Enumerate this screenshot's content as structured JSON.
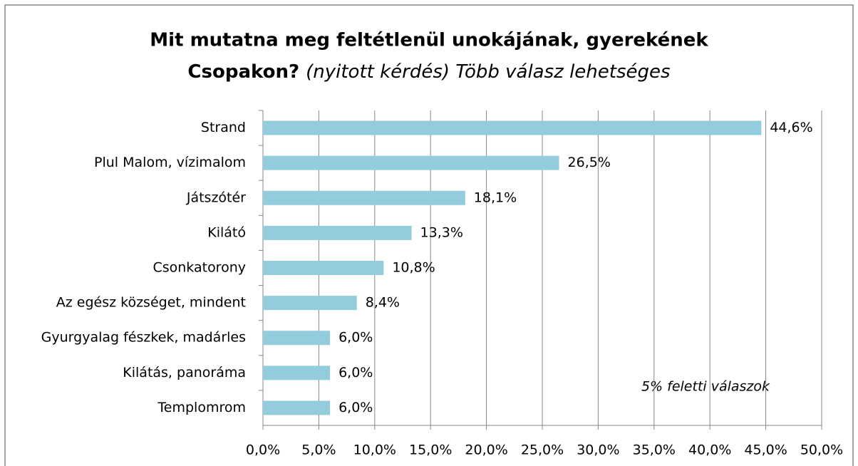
{
  "chart_data": {
    "type": "bar",
    "orientation": "horizontal",
    "title": "Mit mutatna meg feltétlenül unokájának, gyerekének",
    "title_line2": "Csopakon?",
    "subtitle": "(nyitott kérdés) Több válasz lehetséges",
    "annotation": "5% feletti válaszok",
    "categories": [
      "Strand",
      "Plul Malom, vízimalom",
      "Játszótér",
      "Kilátó",
      "Csonkatorony",
      "Az egész községet, mindent",
      "Gyurgyalag fészkek, madárles",
      "Kilátás, panoráma",
      "Templomrom"
    ],
    "values": [
      44.6,
      26.5,
      18.1,
      13.3,
      10.8,
      8.4,
      6.0,
      6.0,
      6.0
    ],
    "value_labels": [
      "44,6%",
      "26,5%",
      "18,1%",
      "13,3%",
      "10,8%",
      "8,4%",
      "6,0%",
      "6,0%",
      "6,0%"
    ],
    "color": "#93cddd",
    "xlim": [
      0,
      50
    ],
    "xticks": [
      {
        "value": 0,
        "label": "0,0%"
      },
      {
        "value": 5,
        "label": "5,0%"
      },
      {
        "value": 10,
        "label": "10,0%"
      },
      {
        "value": 15,
        "label": "15,0%"
      },
      {
        "value": 20,
        "label": "20,0%"
      },
      {
        "value": 25,
        "label": "25,0%"
      },
      {
        "value": 30,
        "label": "30,0%"
      },
      {
        "value": 35,
        "label": "35,0%"
      },
      {
        "value": 40,
        "label": "40,0%"
      },
      {
        "value": 45,
        "label": "45,0%"
      },
      {
        "value": 50,
        "label": "50,0%"
      }
    ],
    "grid": true
  }
}
